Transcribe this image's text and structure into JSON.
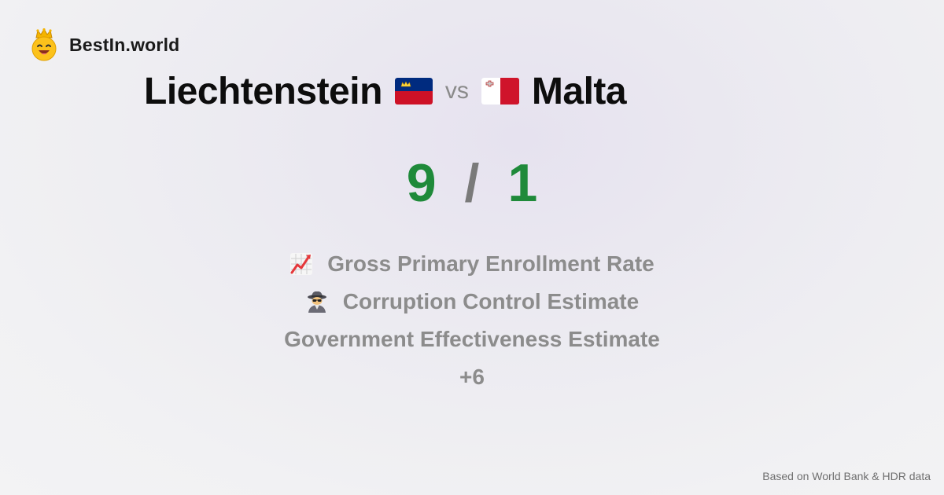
{
  "brand": {
    "name": "BestIn.world",
    "logo_icon": "crowned-smiley-icon"
  },
  "comparison": {
    "left_country": "Liechtenstein",
    "left_flag_icon": "liechtenstein-flag-icon",
    "vs_label": "vs",
    "right_country": "Malta",
    "right_flag_icon": "malta-flag-icon"
  },
  "score": {
    "left": "9",
    "separator": "/",
    "right": "1"
  },
  "metrics": [
    {
      "label": "Gross Primary Enrollment Rate",
      "icon": "chart-increasing-icon"
    },
    {
      "label": "Corruption Control Estimate",
      "icon": "detective-icon"
    },
    {
      "label": "Government Effectiveness Estimate",
      "icon": ""
    }
  ],
  "more_label": "+6",
  "footer": {
    "source": "Based on World Bank & HDR data"
  },
  "colors": {
    "score_green": "#1f8a3a",
    "muted_text": "#8c8c8c",
    "liechtenstein_blue": "#002b7f",
    "liechtenstein_red": "#ce1126",
    "malta_red": "#cf142b"
  }
}
